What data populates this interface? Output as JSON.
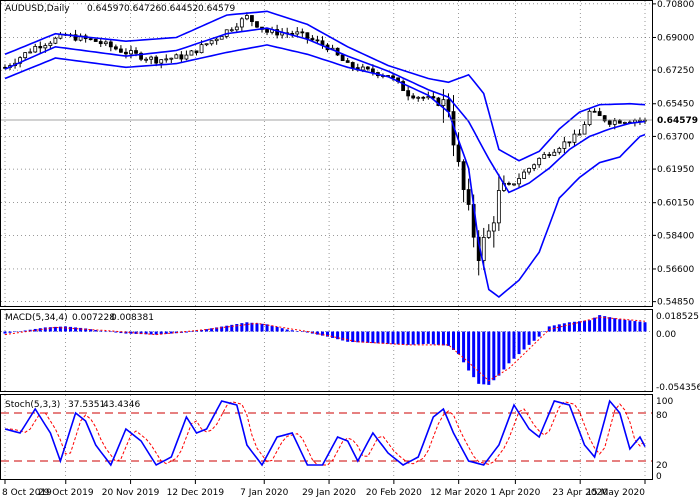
{
  "chart_data": [
    {
      "type": "candlestick",
      "header": {
        "symbol": "AUDUSD,Daily",
        "ohlc": [
          "0.64597",
          "0.64726",
          "0.64452",
          "0.64579"
        ]
      },
      "y_ticks": [
        0.708,
        0.69,
        0.6725,
        0.6545,
        0.637,
        0.6195,
        0.6015,
        0.584,
        0.566,
        0.5485
      ],
      "y_tick_labels": [
        "0.70800",
        "0.69000",
        "0.67250",
        "0.65450",
        "0.63700",
        "0.61950",
        "0.60150",
        "0.58400",
        "0.56600",
        "0.54850"
      ],
      "ylim": [
        0.5467,
        0.709
      ],
      "current_price": 0.64579,
      "current_price_label": "0.64579",
      "anchors": [
        {
          "i": 0,
          "mid": 0.674
        },
        {
          "i": 6,
          "mid": 0.685
        },
        {
          "i": 12,
          "mid": 0.691
        },
        {
          "i": 18,
          "mid": 0.688
        },
        {
          "i": 24,
          "mid": 0.682
        },
        {
          "i": 30,
          "mid": 0.678
        },
        {
          "i": 36,
          "mid": 0.68
        },
        {
          "i": 42,
          "mid": 0.69
        },
        {
          "i": 48,
          "mid": 0.701
        },
        {
          "i": 52,
          "mid": 0.693
        },
        {
          "i": 58,
          "mid": 0.692
        },
        {
          "i": 64,
          "mid": 0.685
        },
        {
          "i": 68,
          "mid": 0.675
        },
        {
          "i": 72,
          "mid": 0.672
        },
        {
          "i": 76,
          "mid": 0.67
        },
        {
          "i": 80,
          "mid": 0.66
        },
        {
          "i": 84,
          "mid": 0.657
        },
        {
          "i": 88,
          "mid": 0.653
        },
        {
          "i": 90,
          "mid": 0.62
        },
        {
          "i": 92,
          "mid": 0.595
        },
        {
          "i": 94,
          "mid": 0.575
        },
        {
          "i": 96,
          "mid": 0.585
        },
        {
          "i": 98,
          "mid": 0.605
        },
        {
          "i": 102,
          "mid": 0.615
        },
        {
          "i": 106,
          "mid": 0.625
        },
        {
          "i": 110,
          "mid": 0.632
        },
        {
          "i": 114,
          "mid": 0.638
        },
        {
          "i": 116,
          "mid": 0.65
        },
        {
          "i": 120,
          "mid": 0.645
        },
        {
          "i": 124,
          "mid": 0.646
        },
        {
          "i": 127,
          "mid": 0.6458
        }
      ],
      "bands": {
        "upper": [
          {
            "i": 0,
            "v": 0.681
          },
          {
            "i": 10,
            "v": 0.692
          },
          {
            "i": 24,
            "v": 0.688
          },
          {
            "i": 34,
            "v": 0.69
          },
          {
            "i": 44,
            "v": 0.702
          },
          {
            "i": 52,
            "v": 0.704
          },
          {
            "i": 60,
            "v": 0.697
          },
          {
            "i": 68,
            "v": 0.685
          },
          {
            "i": 76,
            "v": 0.675
          },
          {
            "i": 84,
            "v": 0.668
          },
          {
            "i": 88,
            "v": 0.666
          },
          {
            "i": 92,
            "v": 0.67
          },
          {
            "i": 95,
            "v": 0.66
          },
          {
            "i": 98,
            "v": 0.63
          },
          {
            "i": 102,
            "v": 0.624
          },
          {
            "i": 106,
            "v": 0.629
          },
          {
            "i": 110,
            "v": 0.641
          },
          {
            "i": 114,
            "v": 0.65
          },
          {
            "i": 118,
            "v": 0.654
          },
          {
            "i": 124,
            "v": 0.6545
          },
          {
            "i": 127,
            "v": 0.654
          }
        ],
        "middle": [
          {
            "i": 0,
            "v": 0.673
          },
          {
            "i": 10,
            "v": 0.685
          },
          {
            "i": 24,
            "v": 0.68
          },
          {
            "i": 34,
            "v": 0.683
          },
          {
            "i": 44,
            "v": 0.692
          },
          {
            "i": 52,
            "v": 0.695
          },
          {
            "i": 60,
            "v": 0.689
          },
          {
            "i": 68,
            "v": 0.68
          },
          {
            "i": 76,
            "v": 0.672
          },
          {
            "i": 84,
            "v": 0.662
          },
          {
            "i": 88,
            "v": 0.658
          },
          {
            "i": 92,
            "v": 0.645
          },
          {
            "i": 96,
            "v": 0.625
          },
          {
            "i": 100,
            "v": 0.607
          },
          {
            "i": 104,
            "v": 0.612
          },
          {
            "i": 108,
            "v": 0.62
          },
          {
            "i": 112,
            "v": 0.63
          },
          {
            "i": 116,
            "v": 0.637
          },
          {
            "i": 120,
            "v": 0.641
          },
          {
            "i": 124,
            "v": 0.644
          },
          {
            "i": 127,
            "v": 0.645
          }
        ],
        "lower": [
          {
            "i": 0,
            "v": 0.668
          },
          {
            "i": 10,
            "v": 0.679
          },
          {
            "i": 24,
            "v": 0.674
          },
          {
            "i": 34,
            "v": 0.676
          },
          {
            "i": 44,
            "v": 0.682
          },
          {
            "i": 52,
            "v": 0.686
          },
          {
            "i": 60,
            "v": 0.681
          },
          {
            "i": 68,
            "v": 0.674
          },
          {
            "i": 76,
            "v": 0.669
          },
          {
            "i": 84,
            "v": 0.659
          },
          {
            "i": 88,
            "v": 0.65
          },
          {
            "i": 92,
            "v": 0.62
          },
          {
            "i": 94,
            "v": 0.58
          },
          {
            "i": 96,
            "v": 0.555
          },
          {
            "i": 98,
            "v": 0.551
          },
          {
            "i": 102,
            "v": 0.56
          },
          {
            "i": 106,
            "v": 0.575
          },
          {
            "i": 110,
            "v": 0.604
          },
          {
            "i": 114,
            "v": 0.615
          },
          {
            "i": 118,
            "v": 0.623
          },
          {
            "i": 122,
            "v": 0.626
          },
          {
            "i": 126,
            "v": 0.637
          },
          {
            "i": 127,
            "v": 0.638
          }
        ]
      }
    },
    {
      "type": "histogram",
      "header": {
        "name": "MACD(5,34,4)",
        "values": [
          "0.007228",
          "0.008381"
        ]
      },
      "y_tick_labels": [
        "0.018525",
        "0.00",
        "-0.054356"
      ],
      "ylim": [
        -0.057,
        0.02
      ],
      "anchors": [
        {
          "i": 0,
          "v": -0.002
        },
        {
          "i": 4,
          "v": 0.001
        },
        {
          "i": 8,
          "v": 0.004
        },
        {
          "i": 12,
          "v": 0.005
        },
        {
          "i": 16,
          "v": 0.003
        },
        {
          "i": 20,
          "v": 0.0
        },
        {
          "i": 24,
          "v": -0.002
        },
        {
          "i": 30,
          "v": -0.003
        },
        {
          "i": 36,
          "v": -0.001
        },
        {
          "i": 42,
          "v": 0.004
        },
        {
          "i": 48,
          "v": 0.009
        },
        {
          "i": 52,
          "v": 0.007
        },
        {
          "i": 56,
          "v": 0.002
        },
        {
          "i": 60,
          "v": -0.001
        },
        {
          "i": 64,
          "v": -0.005
        },
        {
          "i": 68,
          "v": -0.01
        },
        {
          "i": 72,
          "v": -0.011
        },
        {
          "i": 76,
          "v": -0.012
        },
        {
          "i": 80,
          "v": -0.013
        },
        {
          "i": 84,
          "v": -0.012
        },
        {
          "i": 88,
          "v": -0.014
        },
        {
          "i": 90,
          "v": -0.022
        },
        {
          "i": 92,
          "v": -0.038
        },
        {
          "i": 94,
          "v": -0.051
        },
        {
          "i": 96,
          "v": -0.052
        },
        {
          "i": 98,
          "v": -0.043
        },
        {
          "i": 100,
          "v": -0.031
        },
        {
          "i": 104,
          "v": -0.013
        },
        {
          "i": 106,
          "v": -0.005
        },
        {
          "i": 108,
          "v": 0.005
        },
        {
          "i": 112,
          "v": 0.009
        },
        {
          "i": 116,
          "v": 0.011
        },
        {
          "i": 118,
          "v": 0.016
        },
        {
          "i": 122,
          "v": 0.012
        },
        {
          "i": 127,
          "v": 0.009
        }
      ],
      "signal_anchors": [
        {
          "i": 0,
          "v": -0.003
        },
        {
          "i": 10,
          "v": 0.004
        },
        {
          "i": 20,
          "v": 0.001
        },
        {
          "i": 30,
          "v": -0.003
        },
        {
          "i": 40,
          "v": 0.002
        },
        {
          "i": 50,
          "v": 0.008
        },
        {
          "i": 60,
          "v": 0.0
        },
        {
          "i": 70,
          "v": -0.01
        },
        {
          "i": 80,
          "v": -0.013
        },
        {
          "i": 88,
          "v": -0.013
        },
        {
          "i": 92,
          "v": -0.03
        },
        {
          "i": 96,
          "v": -0.048
        },
        {
          "i": 100,
          "v": -0.036
        },
        {
          "i": 104,
          "v": -0.017
        },
        {
          "i": 108,
          "v": 0.002
        },
        {
          "i": 114,
          "v": 0.009
        },
        {
          "i": 118,
          "v": 0.014
        },
        {
          "i": 127,
          "v": 0.01
        }
      ]
    },
    {
      "type": "line",
      "header": {
        "name": "Stoch(5,3,3)",
        "values": [
          "37.5351",
          "43.4346"
        ]
      },
      "y_tick_labels": [
        "100",
        "80",
        "20",
        "0"
      ],
      "ylim": [
        0,
        100
      ],
      "levels": [
        80,
        20
      ],
      "anchors": [
        {
          "i": 0,
          "v": 60
        },
        {
          "i": 3,
          "v": 55
        },
        {
          "i": 6,
          "v": 85
        },
        {
          "i": 9,
          "v": 55
        },
        {
          "i": 11,
          "v": 20
        },
        {
          "i": 14,
          "v": 80
        },
        {
          "i": 16,
          "v": 70
        },
        {
          "i": 18,
          "v": 40
        },
        {
          "i": 21,
          "v": 15
        },
        {
          "i": 24,
          "v": 60
        },
        {
          "i": 27,
          "v": 45
        },
        {
          "i": 30,
          "v": 15
        },
        {
          "i": 33,
          "v": 25
        },
        {
          "i": 36,
          "v": 75
        },
        {
          "i": 38,
          "v": 55
        },
        {
          "i": 40,
          "v": 60
        },
        {
          "i": 43,
          "v": 95
        },
        {
          "i": 46,
          "v": 90
        },
        {
          "i": 48,
          "v": 40
        },
        {
          "i": 51,
          "v": 15
        },
        {
          "i": 54,
          "v": 50
        },
        {
          "i": 57,
          "v": 55
        },
        {
          "i": 60,
          "v": 15
        },
        {
          "i": 63,
          "v": 15
        },
        {
          "i": 66,
          "v": 50
        },
        {
          "i": 68,
          "v": 45
        },
        {
          "i": 70,
          "v": 20
        },
        {
          "i": 73,
          "v": 55
        },
        {
          "i": 76,
          "v": 30
        },
        {
          "i": 79,
          "v": 15
        },
        {
          "i": 82,
          "v": 25
        },
        {
          "i": 85,
          "v": 75
        },
        {
          "i": 87,
          "v": 85
        },
        {
          "i": 89,
          "v": 55
        },
        {
          "i": 92,
          "v": 20
        },
        {
          "i": 95,
          "v": 15
        },
        {
          "i": 98,
          "v": 40
        },
        {
          "i": 101,
          "v": 90
        },
        {
          "i": 104,
          "v": 60
        },
        {
          "i": 106,
          "v": 50
        },
        {
          "i": 109,
          "v": 95
        },
        {
          "i": 112,
          "v": 90
        },
        {
          "i": 115,
          "v": 40
        },
        {
          "i": 117,
          "v": 25
        },
        {
          "i": 120,
          "v": 95
        },
        {
          "i": 122,
          "v": 80
        },
        {
          "i": 124,
          "v": 35
        },
        {
          "i": 126,
          "v": 50
        },
        {
          "i": 127,
          "v": 38
        }
      ]
    },
    {
      "type": "axis",
      "x_tick_labels": [
        "8 Oct 2019",
        "29 Oct 2019",
        "20 Nov 2019",
        "12 Dec 2019",
        "7 Jan 2020",
        "29 Jan 2020",
        "20 Feb 2020",
        "12 Mar 2020",
        "1 Apr 2020",
        "23 Apr 2020",
        "15 May 2020"
      ],
      "x_tick_index": [
        0,
        15,
        31,
        47,
        64,
        80,
        96,
        112,
        126,
        142,
        158
      ]
    }
  ],
  "colors": {
    "series": "#0000ff",
    "signal": "#ff0000",
    "candle": "#000000",
    "grid": "#000000",
    "level": "#cc0000",
    "price_line": "#888888"
  }
}
